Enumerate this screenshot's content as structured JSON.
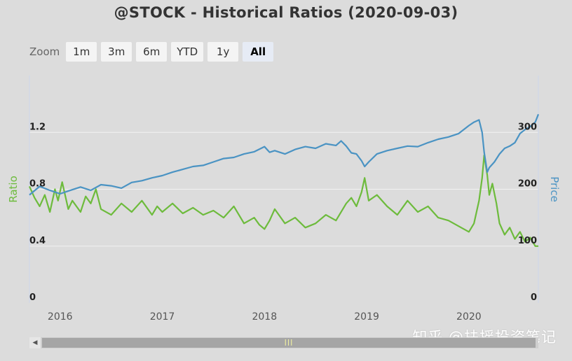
{
  "chart_data": {
    "type": "line",
    "title": "@STOCK - Historical Ratios (2020-09-03)",
    "ylabel_left": "Ratio",
    "ylabel_right": "Price",
    "ylim_left": [
      0,
      1.6
    ],
    "ylim_right": [
      0,
      400
    ],
    "yticks_left": [
      "0",
      "0.4",
      "0.8",
      "1.2"
    ],
    "yticks_left_values": [
      0,
      0.4,
      0.8,
      1.2
    ],
    "yticks_right": [
      "0",
      "100",
      "200",
      "300"
    ],
    "yticks_right_values": [
      0,
      100,
      200,
      300
    ],
    "xticks": [
      "2016",
      "2017",
      "2018",
      "2019",
      "2020"
    ],
    "xticks_values": [
      2016,
      2017,
      2018,
      2019,
      2020
    ],
    "xlim": [
      2015.7,
      2020.68
    ],
    "grid": true,
    "series": [
      {
        "name": "Ratio",
        "axis": "left",
        "color": "#6dbb3c",
        "x": [
          2015.7,
          2015.75,
          2015.8,
          2015.85,
          2015.9,
          2015.95,
          2015.98,
          2016.02,
          2016.08,
          2016.12,
          2016.2,
          2016.25,
          2016.3,
          2016.35,
          2016.4,
          2016.5,
          2016.6,
          2016.7,
          2016.8,
          2016.9,
          2016.95,
          2017.0,
          2017.1,
          2017.2,
          2017.3,
          2017.4,
          2017.5,
          2017.6,
          2017.7,
          2017.8,
          2017.9,
          2017.95,
          2018.0,
          2018.05,
          2018.1,
          2018.2,
          2018.3,
          2018.4,
          2018.5,
          2018.6,
          2018.7,
          2018.8,
          2018.85,
          2018.9,
          2018.95,
          2018.98,
          2019.02,
          2019.1,
          2019.2,
          2019.3,
          2019.4,
          2019.5,
          2019.6,
          2019.7,
          2019.8,
          2019.9,
          2020.0,
          2020.05,
          2020.1,
          2020.13,
          2020.15,
          2020.18,
          2020.2,
          2020.23,
          2020.27,
          2020.3,
          2020.35,
          2020.4,
          2020.45,
          2020.5,
          2020.55,
          2020.6,
          2020.65,
          2020.68
        ],
        "values": [
          0.82,
          0.74,
          0.68,
          0.76,
          0.64,
          0.8,
          0.72,
          0.85,
          0.66,
          0.72,
          0.64,
          0.75,
          0.7,
          0.8,
          0.66,
          0.62,
          0.7,
          0.64,
          0.72,
          0.62,
          0.68,
          0.64,
          0.7,
          0.63,
          0.67,
          0.62,
          0.65,
          0.6,
          0.68,
          0.56,
          0.6,
          0.55,
          0.52,
          0.58,
          0.66,
          0.56,
          0.6,
          0.53,
          0.56,
          0.62,
          0.58,
          0.7,
          0.74,
          0.68,
          0.78,
          0.88,
          0.72,
          0.76,
          0.68,
          0.62,
          0.72,
          0.64,
          0.68,
          0.6,
          0.58,
          0.54,
          0.5,
          0.56,
          0.72,
          0.88,
          1.04,
          0.9,
          0.76,
          0.84,
          0.7,
          0.56,
          0.48,
          0.53,
          0.45,
          0.5,
          0.43,
          0.46,
          0.4,
          0.4
        ]
      },
      {
        "name": "Price",
        "axis": "right",
        "color": "#4a93c3",
        "x": [
          2015.7,
          2015.8,
          2015.9,
          2016.0,
          2016.1,
          2016.2,
          2016.3,
          2016.4,
          2016.5,
          2016.6,
          2016.7,
          2016.8,
          2016.9,
          2017.0,
          2017.1,
          2017.2,
          2017.3,
          2017.4,
          2017.5,
          2017.6,
          2017.7,
          2017.8,
          2017.9,
          2018.0,
          2018.05,
          2018.1,
          2018.2,
          2018.3,
          2018.4,
          2018.5,
          2018.6,
          2018.7,
          2018.75,
          2018.8,
          2018.85,
          2018.9,
          2018.95,
          2018.98,
          2019.02,
          2019.1,
          2019.2,
          2019.3,
          2019.4,
          2019.5,
          2019.6,
          2019.7,
          2019.8,
          2019.9,
          2020.0,
          2020.05,
          2020.1,
          2020.13,
          2020.15,
          2020.18,
          2020.2,
          2020.25,
          2020.3,
          2020.35,
          2020.4,
          2020.45,
          2020.5,
          2020.55,
          2020.6,
          2020.65,
          2020.68
        ],
        "values": [
          190,
          205,
          198,
          192,
          198,
          204,
          198,
          208,
          206,
          202,
          212,
          215,
          220,
          224,
          230,
          235,
          240,
          242,
          248,
          254,
          256,
          262,
          266,
          275,
          265,
          268,
          262,
          270,
          275,
          272,
          280,
          277,
          285,
          276,
          264,
          262,
          250,
          240,
          248,
          262,
          268,
          272,
          276,
          275,
          282,
          288,
          292,
          298,
          312,
          318,
          322,
          300,
          265,
          230,
          238,
          248,
          262,
          272,
          276,
          282,
          298,
          305,
          310,
          318,
          332
        ]
      }
    ]
  },
  "zoom": {
    "label": "Zoom",
    "buttons": [
      "1m",
      "3m",
      "6m",
      "YTD",
      "1y",
      "All"
    ],
    "active": "All"
  },
  "watermark": "知乎 @扶摇投资笔记"
}
